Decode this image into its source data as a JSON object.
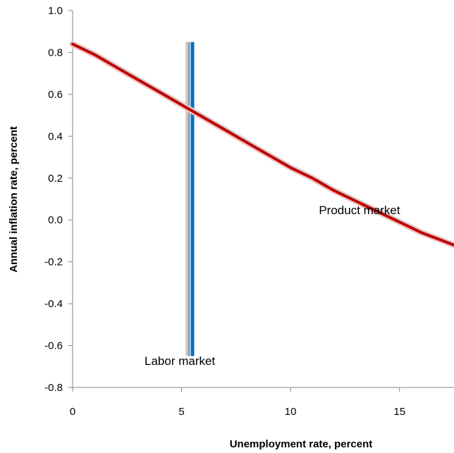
{
  "chart_data": {
    "type": "line",
    "title": "",
    "xlabel": "Unemployment rate, percent",
    "ylabel": "Annual inflation rate, percent",
    "xlim": [
      0,
      17.5
    ],
    "ylim": [
      -0.8,
      1.0
    ],
    "x_ticks": [
      "0",
      "5",
      "10",
      "15"
    ],
    "x_tick_values": [
      0,
      5,
      10,
      15
    ],
    "y_ticks": [
      "1.0",
      "0.8",
      "0.6",
      "0.4",
      "0.2",
      "0.0",
      "-0.2",
      "-0.4",
      "-0.6",
      "-0.8"
    ],
    "y_tick_values": [
      1.0,
      0.8,
      0.6,
      0.4,
      0.2,
      0.0,
      -0.2,
      -0.4,
      -0.6,
      -0.8
    ],
    "grid": false,
    "legend": "none",
    "series": [
      {
        "label": "Product market",
        "color": "#C00000",
        "x": [
          0,
          1,
          2,
          3,
          4,
          5,
          6,
          7,
          8,
          9,
          10,
          11,
          12,
          13,
          14,
          15,
          16,
          17,
          17.5
        ],
        "y": [
          0.84,
          0.79,
          0.73,
          0.67,
          0.61,
          0.55,
          0.49,
          0.43,
          0.37,
          0.31,
          0.25,
          0.2,
          0.14,
          0.09,
          0.04,
          -0.01,
          -0.06,
          -0.1,
          -0.12
        ]
      },
      {
        "label": "Labor market",
        "color": "#0070C0",
        "x": [
          5.5,
          5.5
        ],
        "y": [
          0.85,
          -0.65
        ]
      }
    ],
    "annotations": [
      {
        "text": "Product market",
        "x": 11.3,
        "y": 0.0
      },
      {
        "text": "Labor market",
        "x": 3.3,
        "y": -0.72
      }
    ]
  }
}
